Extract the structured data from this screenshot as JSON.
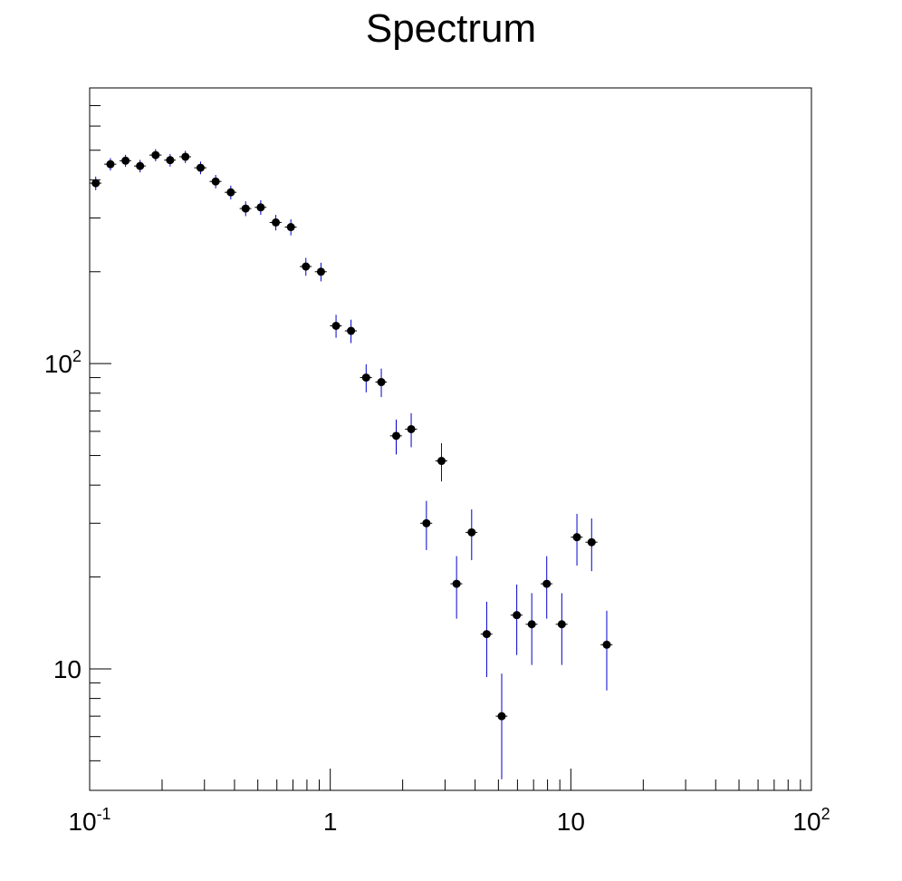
{
  "chart_data": {
    "type": "scatter",
    "title": "Spectrum",
    "xlabel": "",
    "ylabel": "",
    "xscale": "log",
    "yscale": "log",
    "xlim": [
      0.1,
      100
    ],
    "ylim": [
      4,
      800
    ],
    "grid": false,
    "legend": "none",
    "x_tick_labels": [
      {
        "value": 0.1,
        "base": "10",
        "exp": "-1"
      },
      {
        "value": 1,
        "base": "1",
        "exp": ""
      },
      {
        "value": 10,
        "base": "10",
        "exp": ""
      },
      {
        "value": 100,
        "base": "10",
        "exp": "2"
      }
    ],
    "y_tick_labels": [
      {
        "value": 10,
        "base": "10",
        "exp": ""
      },
      {
        "value": 100,
        "base": "10",
        "exp": "2"
      }
    ],
    "colors": {
      "marker": "#000000",
      "error_bar": "#0000cc",
      "axis": "#000000"
    },
    "series": [
      {
        "points": [
          {
            "x": 0.106,
            "y": 390,
            "xerr_lo": 0.006,
            "xerr_hi": 0.006,
            "yerr": 20
          },
          {
            "x": 0.122,
            "y": 450,
            "xerr_lo": 0.007,
            "xerr_hi": 0.007,
            "yerr": 21
          },
          {
            "x": 0.141,
            "y": 462,
            "xerr_lo": 0.008,
            "xerr_hi": 0.008,
            "yerr": 21
          },
          {
            "x": 0.162,
            "y": 444,
            "xerr_lo": 0.009,
            "xerr_hi": 0.009,
            "yerr": 21
          },
          {
            "x": 0.188,
            "y": 482,
            "xerr_lo": 0.011,
            "xerr_hi": 0.011,
            "yerr": 22
          },
          {
            "x": 0.216,
            "y": 464,
            "xerr_lo": 0.012,
            "xerr_hi": 0.012,
            "yerr": 22
          },
          {
            "x": 0.25,
            "y": 476,
            "xerr_lo": 0.014,
            "xerr_hi": 0.014,
            "yerr": 22
          },
          {
            "x": 0.289,
            "y": 438,
            "xerr_lo": 0.017,
            "xerr_hi": 0.017,
            "yerr": 21
          },
          {
            "x": 0.334,
            "y": 395,
            "xerr_lo": 0.019,
            "xerr_hi": 0.019,
            "yerr": 20
          },
          {
            "x": 0.386,
            "y": 364,
            "xerr_lo": 0.022,
            "xerr_hi": 0.022,
            "yerr": 19
          },
          {
            "x": 0.445,
            "y": 322,
            "xerr_lo": 0.025,
            "xerr_hi": 0.025,
            "yerr": 18
          },
          {
            "x": 0.514,
            "y": 325,
            "xerr_lo": 0.029,
            "xerr_hi": 0.029,
            "yerr": 18
          },
          {
            "x": 0.594,
            "y": 290,
            "xerr_lo": 0.034,
            "xerr_hi": 0.034,
            "yerr": 17
          },
          {
            "x": 0.686,
            "y": 280,
            "xerr_lo": 0.039,
            "xerr_hi": 0.039,
            "yerr": 17
          },
          {
            "x": 0.792,
            "y": 208,
            "xerr_lo": 0.045,
            "xerr_hi": 0.045,
            "yerr": 14
          },
          {
            "x": 0.915,
            "y": 200,
            "xerr_lo": 0.052,
            "xerr_hi": 0.052,
            "yerr": 14
          },
          {
            "x": 1.057,
            "y": 133,
            "xerr_lo": 0.06,
            "xerr_hi": 0.06,
            "yerr": 11.5
          },
          {
            "x": 1.22,
            "y": 128,
            "xerr_lo": 0.07,
            "xerr_hi": 0.07,
            "yerr": 11.3
          },
          {
            "x": 1.41,
            "y": 90,
            "xerr_lo": 0.08,
            "xerr_hi": 0.08,
            "yerr": 9.5
          },
          {
            "x": 1.63,
            "y": 87,
            "xerr_lo": 0.09,
            "xerr_hi": 0.09,
            "yerr": 9.3
          },
          {
            "x": 1.88,
            "y": 58,
            "xerr_lo": 0.107,
            "xerr_hi": 0.107,
            "yerr": 7.6
          },
          {
            "x": 2.17,
            "y": 61,
            "xerr_lo": 0.124,
            "xerr_hi": 0.124,
            "yerr": 7.8
          },
          {
            "x": 2.51,
            "y": 30,
            "xerr_lo": 0.143,
            "xerr_hi": 0.143,
            "yerr": 5.5
          },
          {
            "x": 2.9,
            "y": 48,
            "xerr_lo": 0.165,
            "xerr_hi": 0.165,
            "yerr": 6.9
          },
          {
            "x": 3.35,
            "y": 19,
            "xerr_lo": 0.19,
            "xerr_hi": 0.19,
            "yerr": 4.4
          },
          {
            "x": 3.87,
            "y": 28,
            "xerr_lo": 0.22,
            "xerr_hi": 0.22,
            "yerr": 5.3
          },
          {
            "x": 4.47,
            "y": 13,
            "xerr_lo": 0.25,
            "xerr_hi": 0.25,
            "yerr": 3.6
          },
          {
            "x": 5.16,
            "y": 7,
            "xerr_lo": 0.29,
            "xerr_hi": 0.29,
            "yerr": 2.65
          },
          {
            "x": 5.96,
            "y": 15,
            "xerr_lo": 0.34,
            "xerr_hi": 0.34,
            "yerr": 3.9
          },
          {
            "x": 6.88,
            "y": 14,
            "xerr_lo": 0.39,
            "xerr_hi": 0.39,
            "yerr": 3.7
          },
          {
            "x": 7.94,
            "y": 19,
            "xerr_lo": 0.45,
            "xerr_hi": 0.45,
            "yerr": 4.4
          },
          {
            "x": 9.17,
            "y": 14,
            "xerr_lo": 0.52,
            "xerr_hi": 0.52,
            "yerr": 3.7
          },
          {
            "x": 10.6,
            "y": 27,
            "xerr_lo": 0.6,
            "xerr_hi": 0.6,
            "yerr": 5.2
          },
          {
            "x": 12.2,
            "y": 26,
            "xerr_lo": 0.7,
            "xerr_hi": 0.7,
            "yerr": 5.1
          },
          {
            "x": 14.1,
            "y": 12,
            "xerr_lo": 0.8,
            "xerr_hi": 0.8,
            "yerr": 3.5
          }
        ]
      }
    ]
  }
}
